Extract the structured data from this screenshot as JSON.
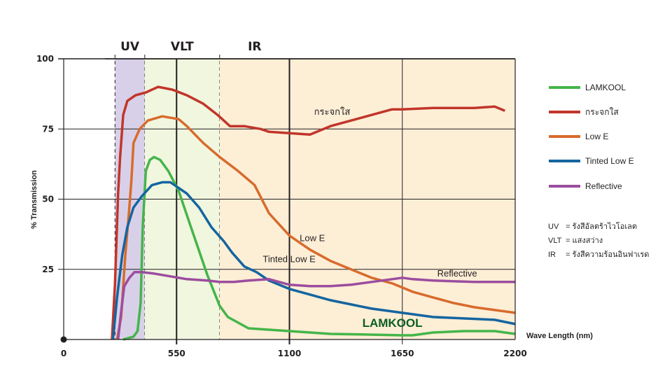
{
  "chart_data": {
    "type": "line",
    "title": "",
    "xlabel": "Wave Length (nm)",
    "ylabel": "% Transmission",
    "xlim": [
      0,
      2200
    ],
    "ylim": [
      0,
      100
    ],
    "x_ticks": [
      0,
      550,
      1100,
      1650,
      2200
    ],
    "y_ticks": [
      25,
      50,
      75,
      100
    ],
    "grid": true,
    "legend_position": "right",
    "bands": [
      {
        "name": "UV",
        "from": 250,
        "to": 395,
        "color": "#d8d0e8"
      },
      {
        "name": "VLT",
        "from": 395,
        "to": 760,
        "color": "#f1f6df"
      },
      {
        "name": "IR",
        "from": 760,
        "to": 2200,
        "color": "#fdeed6"
      }
    ],
    "series": [
      {
        "name": "LAMKOOL",
        "color": "#44b549",
        "points": [
          [
            290,
            0
          ],
          [
            340,
            1
          ],
          [
            360,
            3
          ],
          [
            375,
            13
          ],
          [
            385,
            40
          ],
          [
            400,
            60
          ],
          [
            420,
            64
          ],
          [
            440,
            65
          ],
          [
            470,
            64
          ],
          [
            510,
            60
          ],
          [
            560,
            53
          ],
          [
            620,
            40
          ],
          [
            700,
            23
          ],
          [
            760,
            12
          ],
          [
            800,
            8
          ],
          [
            900,
            4
          ],
          [
            1000,
            3.5
          ],
          [
            1100,
            3
          ],
          [
            1200,
            2.5
          ],
          [
            1300,
            2
          ],
          [
            1450,
            1.8
          ],
          [
            1650,
            1.5
          ],
          [
            1700,
            1.5
          ],
          [
            1800,
            2.5
          ],
          [
            1950,
            3
          ],
          [
            2100,
            3
          ],
          [
            2200,
            2
          ]
        ]
      },
      {
        "name": "กระจกใส",
        "color": "#c1352a",
        "points": [
          [
            235,
            0
          ],
          [
            250,
            20
          ],
          [
            265,
            52
          ],
          [
            275,
            65
          ],
          [
            290,
            80
          ],
          [
            310,
            85
          ],
          [
            350,
            87
          ],
          [
            400,
            88
          ],
          [
            460,
            90
          ],
          [
            530,
            89
          ],
          [
            600,
            87
          ],
          [
            680,
            84
          ],
          [
            750,
            80
          ],
          [
            810,
            76
          ],
          [
            880,
            76
          ],
          [
            960,
            75
          ],
          [
            1000,
            74
          ],
          [
            1100,
            73.5
          ],
          [
            1200,
            73
          ],
          [
            1300,
            76
          ],
          [
            1400,
            78
          ],
          [
            1500,
            80
          ],
          [
            1600,
            82
          ],
          [
            1650,
            82
          ],
          [
            1800,
            82.5
          ],
          [
            2000,
            82.5
          ],
          [
            2100,
            83
          ],
          [
            2150,
            81.5
          ]
        ]
      },
      {
        "name": "Low E",
        "color": "#d86b2c",
        "points": [
          [
            260,
            0
          ],
          [
            280,
            8
          ],
          [
            300,
            30
          ],
          [
            320,
            47
          ],
          [
            330,
            57
          ],
          [
            340,
            70
          ],
          [
            370,
            75
          ],
          [
            410,
            78
          ],
          [
            480,
            79.5
          ],
          [
            560,
            78.5
          ],
          [
            600,
            76
          ],
          [
            680,
            70
          ],
          [
            760,
            65
          ],
          [
            850,
            60
          ],
          [
            930,
            55
          ],
          [
            1000,
            45
          ],
          [
            1050,
            41
          ],
          [
            1100,
            37
          ],
          [
            1200,
            32
          ],
          [
            1300,
            28
          ],
          [
            1400,
            25
          ],
          [
            1500,
            22
          ],
          [
            1600,
            20
          ],
          [
            1700,
            17
          ],
          [
            1800,
            15
          ],
          [
            1900,
            13
          ],
          [
            2000,
            11.5
          ],
          [
            2100,
            10.5
          ],
          [
            2200,
            9.5
          ]
        ]
      },
      {
        "name": "Tinted Low E",
        "color": "#1465a0",
        "points": [
          [
            240,
            0
          ],
          [
            260,
            15
          ],
          [
            285,
            30
          ],
          [
            310,
            40
          ],
          [
            340,
            47
          ],
          [
            380,
            51
          ],
          [
            430,
            55
          ],
          [
            480,
            56
          ],
          [
            520,
            56
          ],
          [
            600,
            52
          ],
          [
            660,
            47
          ],
          [
            720,
            40
          ],
          [
            780,
            35
          ],
          [
            820,
            31
          ],
          [
            880,
            26
          ],
          [
            940,
            24
          ],
          [
            1000,
            21
          ],
          [
            1100,
            18
          ],
          [
            1200,
            16
          ],
          [
            1300,
            14
          ],
          [
            1400,
            12.5
          ],
          [
            1500,
            11
          ],
          [
            1600,
            10
          ],
          [
            1700,
            9
          ],
          [
            1800,
            8
          ],
          [
            1950,
            7.5
          ],
          [
            2100,
            7
          ],
          [
            2200,
            5.5
          ]
        ]
      },
      {
        "name": "Reflective",
        "color": "#9b4d9e",
        "points": [
          [
            265,
            0
          ],
          [
            280,
            10
          ],
          [
            295,
            19
          ],
          [
            320,
            22
          ],
          [
            345,
            24
          ],
          [
            380,
            24
          ],
          [
            440,
            23.5
          ],
          [
            520,
            22.5
          ],
          [
            600,
            21.5
          ],
          [
            700,
            21
          ],
          [
            760,
            20.5
          ],
          [
            830,
            20.5
          ],
          [
            900,
            21
          ],
          [
            1000,
            21.5
          ],
          [
            1100,
            19.5
          ],
          [
            1200,
            19
          ],
          [
            1300,
            19
          ],
          [
            1400,
            19.5
          ],
          [
            1500,
            20.5
          ],
          [
            1600,
            21.5
          ],
          [
            1650,
            22
          ],
          [
            1700,
            21.5
          ],
          [
            1800,
            21
          ],
          [
            2000,
            20.5
          ],
          [
            2200,
            20.5
          ]
        ]
      }
    ],
    "annotations": [
      {
        "text": "กระจกใส",
        "x": 1220,
        "y": 80,
        "series": "กระจกใส"
      },
      {
        "text": "Low E",
        "x": 1150,
        "y": 35,
        "series": "Low E"
      },
      {
        "text": "Tinted Low E",
        "x": 970,
        "y": 27.5,
        "series": "Tinted Low E"
      },
      {
        "text": "Reflective",
        "x": 1820,
        "y": 22.5,
        "series": "Reflective"
      },
      {
        "text": "LAMKOOL",
        "x": 1455,
        "y": 4.5,
        "series": "LAMKOOL"
      }
    ]
  },
  "legend": [
    {
      "label": "LAMKOOL",
      "color": "#44b549"
    },
    {
      "label": "กระจกใส",
      "color": "#c1352a"
    },
    {
      "label": "Low E",
      "color": "#d86b2c"
    },
    {
      "label": "Tinted Low E",
      "color": "#1465a0"
    },
    {
      "label": "Reflective",
      "color": "#9b4d9e"
    }
  ],
  "notes": [
    {
      "abbr": "UV",
      "text": "= รังสีอัลตร้าไวโอเลต"
    },
    {
      "abbr": "VLT",
      "text": "= แสงสว่าง"
    },
    {
      "abbr": "IR",
      "text": "= รังสีความร้อนอินฟาเรด"
    }
  ]
}
